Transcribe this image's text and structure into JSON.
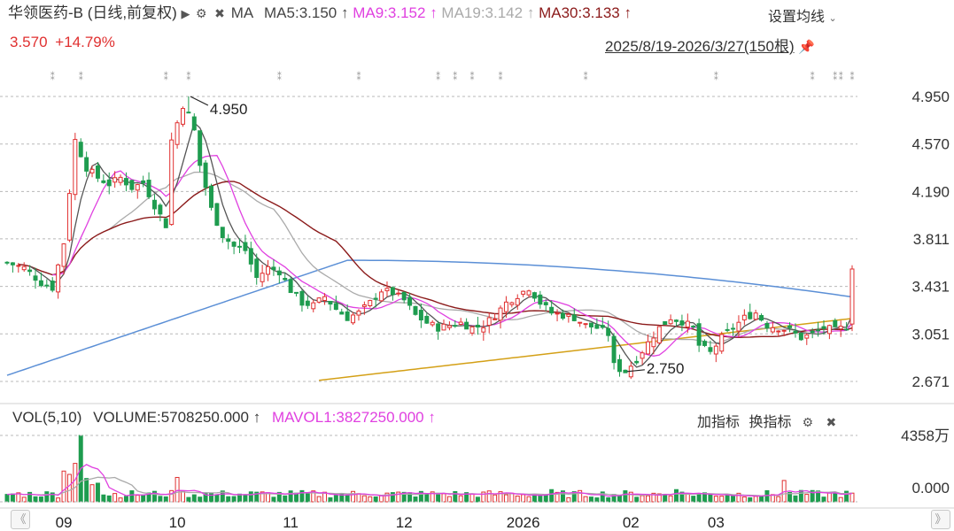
{
  "header": {
    "stock_name": "华领医药-B",
    "mode": "(日线,前复权)",
    "ma_label": "MA",
    "ma5": "MA5:3.150",
    "ma9": "MA9:3.152",
    "ma19": "MA19:3.142",
    "ma30": "MA30:3.133",
    "up_arrow": "↑",
    "price": "3.570",
    "change": "+14.79%",
    "settings_label": "设置均线",
    "range_label": "2025/8/19-2026/3/27(150根)"
  },
  "volume_header": {
    "vol_label": "VOL(5,10)",
    "volume": "VOLUME:5708250.000",
    "mavol": "MAVOL1:3827250.000",
    "up_arrow": "↑",
    "add_indicator": "加指标",
    "switch_indicator": "换指标"
  },
  "nav": {
    "prev": "《",
    "next": "》"
  },
  "colors": {
    "up": "#e03030",
    "down": "#1e9c4f",
    "ma5": "#555555",
    "ma9": "#e040e0",
    "ma19": "#aaaaaa",
    "ma30": "#8b1a1a",
    "ma60": "#5b8fd6",
    "ma120": "#d4a017"
  },
  "chart_data": {
    "type": "candlestick",
    "price_ticks": [
      "4.950",
      "4.570",
      "4.190",
      "3.811",
      "3.431",
      "3.051",
      "2.671"
    ],
    "price_tick_values": [
      4.95,
      4.57,
      4.19,
      3.811,
      3.431,
      3.051,
      2.671
    ],
    "ylim": [
      2.671,
      4.95
    ],
    "x_labels": [
      {
        "label": "09",
        "index": 10
      },
      {
        "label": "10",
        "index": 30
      },
      {
        "label": "11",
        "index": 50
      },
      {
        "label": "12",
        "index": 70
      },
      {
        "label": "2026",
        "index": 91
      },
      {
        "label": "02",
        "index": 110
      },
      {
        "label": "03",
        "index": 125
      }
    ],
    "annotations": [
      {
        "label": "4.950",
        "index": 32,
        "value": 4.95
      },
      {
        "label": "2.750",
        "index": 109,
        "value": 2.75
      }
    ],
    "volume_ticks": [
      "4358万",
      "0.000"
    ],
    "volume_max": 4358,
    "close_path": [
      [
        0,
        3.62
      ],
      [
        3,
        3.58
      ],
      [
        6,
        3.46
      ],
      [
        8,
        3.42
      ],
      [
        10,
        3.78
      ],
      [
        12,
        4.6
      ],
      [
        14,
        4.38
      ],
      [
        16,
        4.3
      ],
      [
        18,
        4.25
      ],
      [
        20,
        4.3
      ],
      [
        22,
        4.22
      ],
      [
        24,
        4.26
      ],
      [
        26,
        4.08
      ],
      [
        28,
        3.92
      ],
      [
        29,
        4.6
      ],
      [
        31,
        4.88
      ],
      [
        32,
        4.95
      ],
      [
        34,
        4.4
      ],
      [
        36,
        4.05
      ],
      [
        38,
        3.84
      ],
      [
        40,
        3.75
      ],
      [
        42,
        3.72
      ],
      [
        44,
        3.5
      ],
      [
        46,
        3.58
      ],
      [
        48,
        3.55
      ],
      [
        50,
        3.4
      ],
      [
        52,
        3.3
      ],
      [
        54,
        3.28
      ],
      [
        56,
        3.35
      ],
      [
        58,
        3.25
      ],
      [
        60,
        3.18
      ],
      [
        62,
        3.22
      ],
      [
        64,
        3.3
      ],
      [
        66,
        3.4
      ],
      [
        68,
        3.38
      ],
      [
        70,
        3.32
      ],
      [
        72,
        3.2
      ],
      [
        74,
        3.14
      ],
      [
        76,
        3.1
      ],
      [
        78,
        3.12
      ],
      [
        80,
        3.14
      ],
      [
        82,
        3.1
      ],
      [
        84,
        3.12
      ],
      [
        86,
        3.2
      ],
      [
        88,
        3.3
      ],
      [
        90,
        3.36
      ],
      [
        92,
        3.42
      ],
      [
        94,
        3.3
      ],
      [
        96,
        3.22
      ],
      [
        98,
        3.2
      ],
      [
        100,
        3.18
      ],
      [
        102,
        3.12
      ],
      [
        104,
        3.1
      ],
      [
        106,
        3.05
      ],
      [
        107,
        2.8
      ],
      [
        108,
        2.77
      ],
      [
        109,
        2.75
      ],
      [
        111,
        2.85
      ],
      [
        113,
        2.98
      ],
      [
        115,
        3.1
      ],
      [
        117,
        3.18
      ],
      [
        119,
        3.15
      ],
      [
        121,
        3.1
      ],
      [
        122,
        2.96
      ],
      [
        124,
        2.9
      ],
      [
        126,
        3.02
      ],
      [
        128,
        3.1
      ],
      [
        130,
        3.18
      ],
      [
        132,
        3.22
      ],
      [
        134,
        3.12
      ],
      [
        136,
        3.1
      ],
      [
        138,
        3.08
      ],
      [
        140,
        3.02
      ],
      [
        142,
        3.05
      ],
      [
        144,
        3.1
      ],
      [
        146,
        3.08
      ],
      [
        148,
        3.11
      ],
      [
        149,
        3.57
      ]
    ],
    "series": [
      {
        "name": "MA5",
        "value": 3.15
      },
      {
        "name": "MA9",
        "value": 3.152
      },
      {
        "name": "MA19",
        "value": 3.142
      },
      {
        "name": "MA30",
        "value": 3.133
      },
      {
        "name": "VOLUME",
        "value": 5708250
      },
      {
        "name": "MAVOL1",
        "value": 3827250
      }
    ],
    "bars": 150,
    "date_range": "2025/8/19-2026/3/27",
    "last_close": 3.57,
    "change_pct": 14.79
  }
}
